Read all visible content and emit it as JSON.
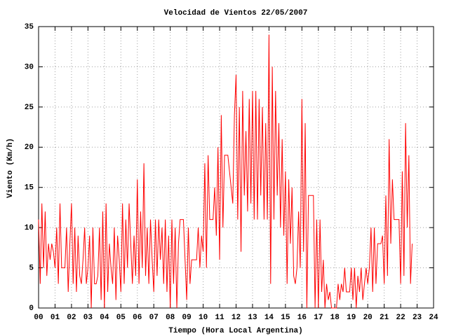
{
  "chart_data": {
    "type": "line",
    "title": "Velocidad de Vientos 22/05/2007",
    "xlabel": "Tiempo (Hora Local Argentina)",
    "ylabel": "Viento (Km/h)",
    "color": "#ff0000",
    "grid": true,
    "xlim": [
      0,
      24
    ],
    "ylim": [
      0,
      35
    ],
    "yticks": [
      0,
      5,
      10,
      15,
      20,
      25,
      30,
      35
    ],
    "xticks": [
      {
        "value": 0,
        "label": "00"
      },
      {
        "value": 1,
        "label": "01"
      },
      {
        "value": 2,
        "label": "02"
      },
      {
        "value": 3,
        "label": "03"
      },
      {
        "value": 4,
        "label": "04"
      },
      {
        "value": 5,
        "label": "05"
      },
      {
        "value": 6,
        "label": "06"
      },
      {
        "value": 7,
        "label": "07"
      },
      {
        "value": 8,
        "label": "08"
      },
      {
        "value": 9,
        "label": "09"
      },
      {
        "value": 10,
        "label": "10"
      },
      {
        "value": 11,
        "label": "11"
      },
      {
        "value": 12,
        "label": "12"
      },
      {
        "value": 13,
        "label": "13"
      },
      {
        "value": 14,
        "label": "14"
      },
      {
        "value": 15,
        "label": "15"
      },
      {
        "value": 16,
        "label": "16"
      },
      {
        "value": 17,
        "label": "17"
      },
      {
        "value": 18,
        "label": "18"
      },
      {
        "value": 19,
        "label": "19"
      },
      {
        "value": 20,
        "label": "20"
      },
      {
        "value": 21,
        "label": "21"
      },
      {
        "value": 22,
        "label": "22"
      },
      {
        "value": 23,
        "label": "23"
      },
      {
        "value": 24,
        "label": "24"
      }
    ],
    "x": [
      0,
      0.1,
      0.2,
      0.3,
      0.4,
      0.5,
      0.6,
      0.7,
      0.8,
      0.9,
      1,
      1.1,
      1.2,
      1.3,
      1.4,
      1.5,
      1.6,
      1.7,
      1.8,
      1.9,
      2,
      2.1,
      2.2,
      2.3,
      2.4,
      2.5,
      2.6,
      2.7,
      2.8,
      2.9,
      3,
      3.1,
      3.2,
      3.3,
      3.4,
      3.5,
      3.6,
      3.7,
      3.8,
      3.9,
      4,
      4.1,
      4.2,
      4.3,
      4.4,
      4.5,
      4.6,
      4.7,
      4.8,
      4.9,
      5,
      5.1,
      5.2,
      5.3,
      5.4,
      5.5,
      5.6,
      5.7,
      5.8,
      5.9,
      6,
      6.1,
      6.2,
      6.3,
      6.4,
      6.5,
      6.6,
      6.7,
      6.8,
      6.9,
      7,
      7.1,
      7.2,
      7.3,
      7.4,
      7.5,
      7.6,
      7.7,
      7.8,
      7.9,
      8,
      8.1,
      8.2,
      8.3,
      8.4,
      8.5,
      8.6,
      8.7,
      8.8,
      8.9,
      9,
      9.1,
      9.2,
      9.3,
      9.4,
      9.5,
      9.6,
      9.7,
      9.8,
      9.9,
      10,
      10.1,
      10.2,
      10.3,
      10.4,
      10.5,
      10.6,
      10.7,
      10.8,
      10.9,
      11,
      11.1,
      11.2,
      11.3,
      11.4,
      11.5,
      11.6,
      11.7,
      11.8,
      11.9,
      12,
      12.1,
      12.2,
      12.3,
      12.4,
      12.5,
      12.6,
      12.7,
      12.8,
      12.9,
      13,
      13.1,
      13.2,
      13.3,
      13.4,
      13.5,
      13.6,
      13.7,
      13.8,
      13.9,
      14,
      14.1,
      14.2,
      14.3,
      14.4,
      14.5,
      14.6,
      14.7,
      14.8,
      14.9,
      15,
      15.1,
      15.2,
      15.3,
      15.4,
      15.5,
      15.6,
      15.7,
      15.8,
      15.9,
      16,
      16.1,
      16.2,
      16.3,
      16.4,
      16.5,
      16.6,
      16.7,
      16.8,
      16.9,
      17,
      17.1,
      17.2,
      17.3,
      17.4,
      17.5,
      17.6,
      17.7,
      17.8,
      17.9,
      18,
      18.1,
      18.2,
      18.3,
      18.4,
      18.5,
      18.6,
      18.7,
      18.8,
      18.9,
      19,
      19.1,
      19.2,
      19.3,
      19.4,
      19.5,
      19.6,
      19.7,
      19.8,
      19.9,
      20,
      20.1,
      20.2,
      20.3,
      20.4,
      20.5,
      20.6,
      20.7,
      20.8,
      20.9,
      21,
      21.1,
      21.2,
      21.3,
      21.4,
      21.5,
      21.6,
      21.7,
      21.8,
      21.9,
      22,
      22.1,
      22.2,
      22.3,
      22.4,
      22.5,
      22.6,
      22.7
    ],
    "values": [
      11,
      3,
      13,
      5,
      12,
      4,
      8,
      6,
      8,
      7,
      5,
      10,
      3,
      13,
      5,
      5,
      5,
      10,
      2,
      8,
      13,
      3,
      10,
      2,
      9,
      4,
      3,
      6,
      10,
      3,
      5,
      9,
      0,
      10,
      3,
      3,
      4,
      10,
      1,
      12,
      0,
      13,
      2,
      8,
      5,
      3,
      10,
      1,
      9,
      6,
      2,
      13,
      3,
      11,
      5,
      13,
      8,
      3,
      9,
      4,
      16,
      3,
      12,
      5,
      18,
      4,
      10,
      3,
      11,
      6,
      2,
      11,
      4,
      11,
      6,
      10,
      3,
      11,
      2,
      9,
      0,
      11,
      3,
      10,
      0,
      8,
      11,
      11,
      11,
      6,
      1,
      10,
      3,
      6,
      6,
      6,
      6,
      10,
      5,
      9,
      7,
      18,
      5,
      19,
      11,
      11,
      11,
      15,
      9,
      20,
      6,
      24,
      10,
      19,
      19,
      19,
      17,
      15,
      13,
      24,
      29,
      11,
      25,
      7,
      27,
      14,
      22,
      12,
      26,
      13,
      27,
      11,
      27,
      11,
      26,
      14,
      25,
      11,
      23,
      11,
      34,
      3,
      30,
      11,
      27,
      14,
      23,
      10,
      21,
      9,
      17,
      3,
      16,
      8,
      15,
      4,
      3,
      5,
      12,
      5,
      26,
      7,
      23,
      0,
      14,
      14,
      14,
      14,
      0,
      11,
      0,
      11,
      2,
      6,
      0,
      3,
      1,
      2,
      0,
      0,
      0,
      0,
      3,
      1,
      3,
      2,
      5,
      2,
      2,
      2,
      5,
      1,
      5,
      0,
      4,
      2,
      5,
      1,
      3,
      5,
      3,
      5,
      10,
      2,
      10,
      3,
      8,
      8,
      8,
      9,
      3,
      14,
      4,
      21,
      8,
      16,
      11,
      11,
      11,
      11,
      3,
      17,
      4,
      23,
      10,
      19,
      3,
      8
    ]
  }
}
